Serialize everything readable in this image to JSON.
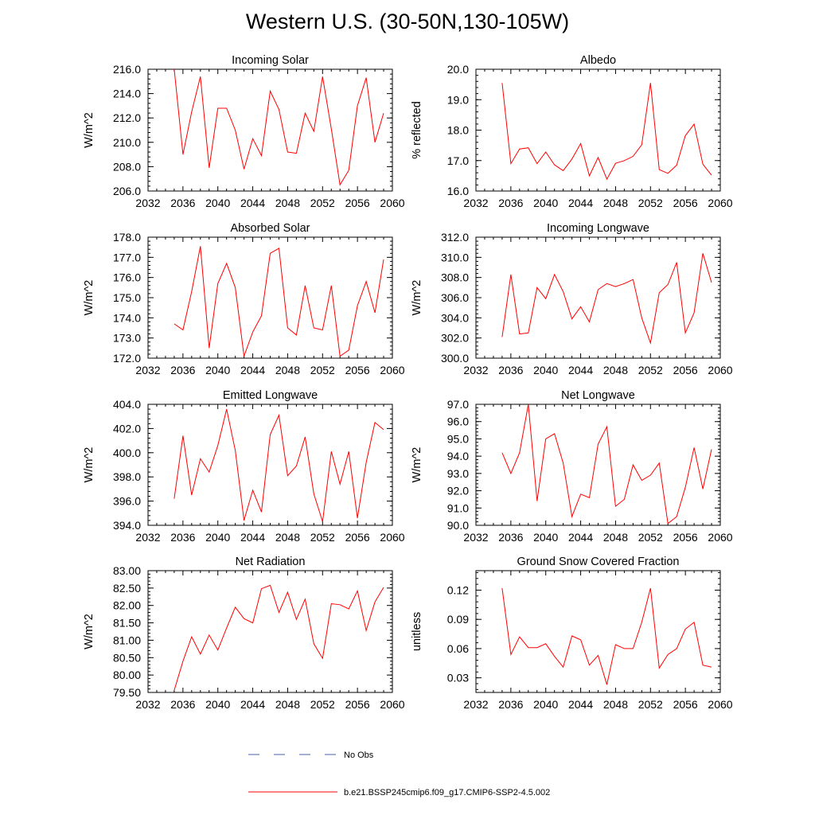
{
  "title": "Western U.S. (30-50N,130-105W)",
  "chart_data": [
    {
      "type": "line",
      "title": "Incoming Solar",
      "ylabel": "W/m^2",
      "xlim": [
        2032,
        2060
      ],
      "ylim": [
        206.0,
        216.0
      ],
      "xticks": [
        2032,
        2036,
        2040,
        2044,
        2048,
        2052,
        2056,
        2060
      ],
      "yticks": [
        "206.0",
        "208.0",
        "210.0",
        "212.0",
        "214.0",
        "216.0"
      ],
      "x": [
        2035,
        2036,
        2037,
        2038,
        2039,
        2040,
        2041,
        2042,
        2043,
        2044,
        2045,
        2046,
        2047,
        2048,
        2049,
        2050,
        2051,
        2052,
        2053,
        2054,
        2055,
        2056,
        2057,
        2058,
        2059
      ],
      "series": [
        {
          "name": "b.e21.BSSP245cmip6.f09_g17.CMIP6-SSP2-4.5.002",
          "values": [
            216.0,
            209.0,
            212.5,
            215.4,
            207.9,
            212.8,
            212.8,
            211.0,
            207.8,
            210.3,
            208.9,
            214.2,
            212.7,
            209.2,
            209.1,
            212.4,
            210.9,
            215.4,
            211.1,
            206.5,
            207.7,
            213.0,
            215.3,
            210.0,
            212.4
          ]
        }
      ]
    },
    {
      "type": "line",
      "title": "Albedo",
      "ylabel": "% reflected",
      "xlim": [
        2032,
        2060
      ],
      "ylim": [
        16.0,
        20.0
      ],
      "xticks": [
        2032,
        2036,
        2040,
        2044,
        2048,
        2052,
        2056,
        2060
      ],
      "yticks": [
        "16.0",
        "17.0",
        "18.0",
        "19.0",
        "20.0"
      ],
      "x": [
        2035,
        2036,
        2037,
        2038,
        2039,
        2040,
        2041,
        2042,
        2043,
        2044,
        2045,
        2046,
        2047,
        2048,
        2049,
        2050,
        2051,
        2052,
        2053,
        2054,
        2055,
        2056,
        2057,
        2058,
        2059
      ],
      "series": [
        {
          "name": "b.e21.BSSP245cmip6.f09_g17.CMIP6-SSP2-4.5.002",
          "values": [
            19.55,
            16.9,
            17.38,
            17.42,
            16.9,
            17.28,
            16.86,
            16.67,
            17.05,
            17.56,
            16.5,
            17.1,
            16.39,
            16.91,
            17.0,
            17.14,
            17.52,
            19.55,
            16.7,
            16.58,
            16.85,
            17.82,
            18.2,
            16.88,
            16.52
          ]
        }
      ]
    },
    {
      "type": "line",
      "title": "Absorbed Solar",
      "ylabel": "W/m^2",
      "xlim": [
        2032,
        2060
      ],
      "ylim": [
        172.0,
        178.0
      ],
      "xticks": [
        2032,
        2036,
        2040,
        2044,
        2048,
        2052,
        2056,
        2060
      ],
      "yticks": [
        "172.0",
        "173.0",
        "174.0",
        "175.0",
        "176.0",
        "177.0",
        "178.0"
      ],
      "x": [
        2035,
        2036,
        2037,
        2038,
        2039,
        2040,
        2041,
        2042,
        2043,
        2044,
        2045,
        2046,
        2047,
        2048,
        2049,
        2050,
        2051,
        2052,
        2053,
        2054,
        2055,
        2056,
        2057,
        2058,
        2059
      ],
      "series": [
        {
          "name": "b.e21.BSSP245cmip6.f09_g17.CMIP6-SSP2-4.5.002",
          "values": [
            173.7,
            173.4,
            175.3,
            177.55,
            172.5,
            175.7,
            176.7,
            175.5,
            172.1,
            173.3,
            174.1,
            177.2,
            177.45,
            173.5,
            173.15,
            175.6,
            173.5,
            173.4,
            175.6,
            172.1,
            172.4,
            174.6,
            175.8,
            174.25,
            176.9
          ]
        }
      ]
    },
    {
      "type": "line",
      "title": "Incoming Longwave",
      "ylabel": "W/m^2",
      "xlim": [
        2032,
        2060
      ],
      "ylim": [
        300.0,
        312.0
      ],
      "xticks": [
        2032,
        2036,
        2040,
        2044,
        2048,
        2052,
        2056,
        2060
      ],
      "yticks": [
        "300.0",
        "302.0",
        "304.0",
        "306.0",
        "308.0",
        "310.0",
        "312.0"
      ],
      "x": [
        2035,
        2036,
        2037,
        2038,
        2039,
        2040,
        2041,
        2042,
        2043,
        2044,
        2045,
        2046,
        2047,
        2048,
        2049,
        2050,
        2051,
        2052,
        2053,
        2054,
        2055,
        2056,
        2057,
        2058,
        2059
      ],
      "series": [
        {
          "name": "b.e21.BSSP245cmip6.f09_g17.CMIP6-SSP2-4.5.002",
          "values": [
            302.1,
            308.3,
            302.4,
            302.5,
            307.0,
            305.9,
            308.3,
            306.6,
            303.9,
            305.1,
            303.6,
            306.8,
            307.4,
            307.1,
            307.4,
            307.8,
            304.0,
            301.5,
            306.5,
            307.3,
            309.5,
            302.5,
            304.5,
            310.4,
            307.5
          ]
        }
      ]
    },
    {
      "type": "line",
      "title": "Emitted Longwave",
      "ylabel": "W/m^2",
      "xlim": [
        2032,
        2060
      ],
      "ylim": [
        394.0,
        404.0
      ],
      "xticks": [
        2032,
        2036,
        2040,
        2044,
        2048,
        2052,
        2056,
        2060
      ],
      "yticks": [
        "394.0",
        "396.0",
        "398.0",
        "400.0",
        "402.0",
        "404.0"
      ],
      "x": [
        2035,
        2036,
        2037,
        2038,
        2039,
        2040,
        2041,
        2042,
        2043,
        2044,
        2045,
        2046,
        2047,
        2048,
        2049,
        2050,
        2051,
        2052,
        2053,
        2054,
        2055,
        2056,
        2057,
        2058,
        2059
      ],
      "series": [
        {
          "name": "b.e21.BSSP245cmip6.f09_g17.CMIP6-SSP2-4.5.002",
          "values": [
            396.2,
            401.4,
            396.5,
            399.5,
            398.4,
            400.6,
            403.6,
            400.2,
            394.4,
            396.9,
            395.1,
            401.5,
            403.1,
            398.1,
            398.9,
            401.3,
            396.6,
            394.3,
            400.1,
            397.4,
            400.1,
            394.6,
            399.2,
            402.5,
            401.9
          ]
        }
      ]
    },
    {
      "type": "line",
      "title": "Net Longwave",
      "ylabel": "W/m^2",
      "xlim": [
        2032,
        2060
      ],
      "ylim": [
        90.0,
        97.0
      ],
      "xticks": [
        2032,
        2036,
        2040,
        2044,
        2048,
        2052,
        2056,
        2060
      ],
      "yticks": [
        "90.0",
        "91.0",
        "92.0",
        "93.0",
        "94.0",
        "95.0",
        "96.0",
        "97.0"
      ],
      "x": [
        2035,
        2036,
        2037,
        2038,
        2039,
        2040,
        2041,
        2042,
        2043,
        2044,
        2045,
        2046,
        2047,
        2048,
        2049,
        2050,
        2051,
        2052,
        2053,
        2054,
        2055,
        2056,
        2057,
        2058,
        2059
      ],
      "series": [
        {
          "name": "b.e21.BSSP245cmip6.f09_g17.CMIP6-SSP2-4.5.002",
          "values": [
            94.2,
            93.0,
            94.2,
            97.0,
            91.4,
            95.0,
            95.3,
            93.6,
            90.5,
            91.8,
            91.6,
            94.7,
            95.7,
            91.1,
            91.5,
            93.5,
            92.6,
            92.9,
            93.6,
            90.1,
            90.5,
            92.2,
            94.5,
            92.1,
            94.4
          ]
        }
      ]
    },
    {
      "type": "line",
      "title": "Net Radiation",
      "ylabel": "W/m^2",
      "xlim": [
        2032,
        2060
      ],
      "ylim": [
        79.5,
        83.0
      ],
      "xticks": [
        2032,
        2036,
        2040,
        2044,
        2048,
        2052,
        2056,
        2060
      ],
      "yticks": [
        "79.50",
        "80.00",
        "80.50",
        "81.00",
        "81.50",
        "82.00",
        "82.50",
        "83.00"
      ],
      "x": [
        2035,
        2036,
        2037,
        2038,
        2039,
        2040,
        2041,
        2042,
        2043,
        2044,
        2045,
        2046,
        2047,
        2048,
        2049,
        2050,
        2051,
        2052,
        2053,
        2054,
        2055,
        2056,
        2057,
        2058,
        2059
      ],
      "series": [
        {
          "name": "b.e21.BSSP245cmip6.f09_g17.CMIP6-SSP2-4.5.002",
          "values": [
            79.56,
            80.4,
            81.1,
            80.6,
            81.15,
            80.72,
            81.35,
            81.95,
            81.62,
            81.5,
            82.48,
            82.58,
            81.8,
            82.38,
            81.6,
            82.18,
            80.9,
            80.48,
            82.05,
            82.02,
            81.9,
            82.42,
            81.28,
            82.1,
            82.52
          ]
        }
      ]
    },
    {
      "type": "line",
      "title": "Ground Snow Covered Fraction",
      "ylabel": "unitless",
      "xlim": [
        2032,
        2060
      ],
      "ylim": [
        0.015,
        0.14
      ],
      "xticks": [
        2032,
        2036,
        2040,
        2044,
        2048,
        2052,
        2056,
        2060
      ],
      "yticks": [
        "0.03",
        "0.06",
        "0.09",
        "0.12"
      ],
      "x": [
        2035,
        2036,
        2037,
        2038,
        2039,
        2040,
        2041,
        2042,
        2043,
        2044,
        2045,
        2046,
        2047,
        2048,
        2049,
        2050,
        2051,
        2052,
        2053,
        2054,
        2055,
        2056,
        2057,
        2058,
        2059
      ],
      "series": [
        {
          "name": "b.e21.BSSP245cmip6.f09_g17.CMIP6-SSP2-4.5.002",
          "values": [
            0.122,
            0.054,
            0.072,
            0.061,
            0.061,
            0.065,
            0.052,
            0.041,
            0.073,
            0.069,
            0.043,
            0.053,
            0.023,
            0.064,
            0.06,
            0.06,
            0.087,
            0.122,
            0.04,
            0.054,
            0.06,
            0.08,
            0.087,
            0.043,
            0.041
          ]
        }
      ]
    }
  ],
  "legend": {
    "items": [
      {
        "label": "No Obs",
        "color": "#4d5fb3",
        "style": "dashed"
      },
      {
        "label": "b.e21.BSSP245cmip6.f09_g17.CMIP6-SSP2-4.5.002",
        "color": "#ff0000",
        "style": "solid"
      }
    ]
  },
  "colors": {
    "series": "#ff0000",
    "obs": "#4d5fb3",
    "axis": "#000000"
  }
}
